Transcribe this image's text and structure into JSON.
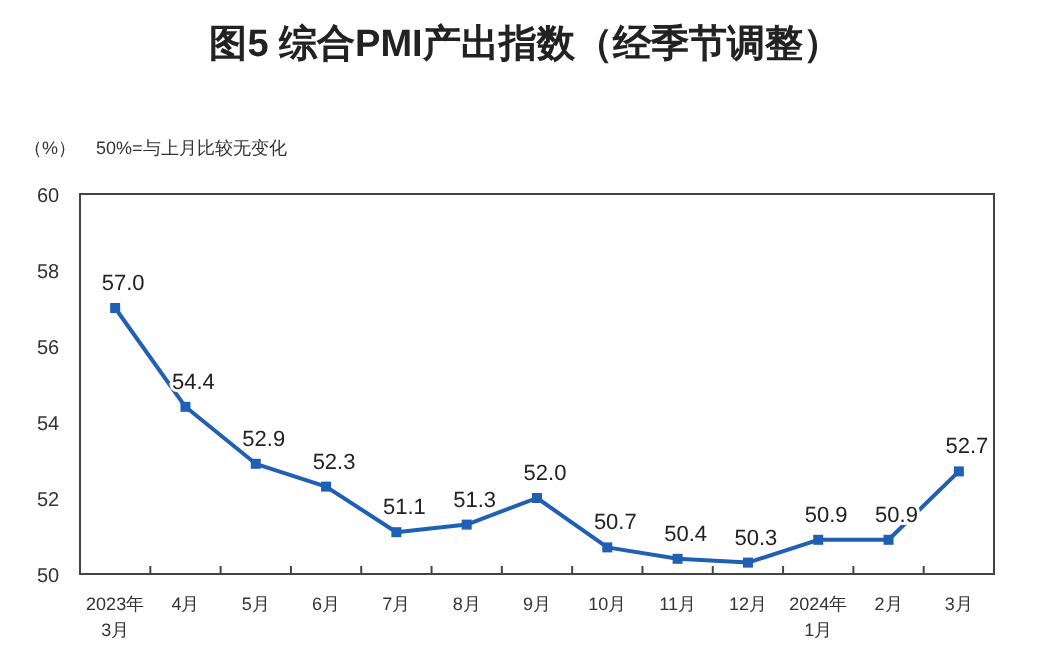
{
  "chart_data": {
    "type": "line",
    "title": "图5  综合PMI产出指数（经季节调整）",
    "ylabel": "（%）",
    "annotations": [
      "50%=与上月比较无变化"
    ],
    "categories": [
      "2023年\n3月",
      "4月",
      "5月",
      "6月",
      "7月",
      "8月",
      "9月",
      "10月",
      "11月",
      "12月",
      "2024年\n1月",
      "2月",
      "3月"
    ],
    "series": [
      {
        "color": "#1f5fb4",
        "values": [
          57.0,
          54.4,
          52.9,
          52.3,
          51.1,
          51.3,
          52.0,
          50.7,
          50.4,
          50.3,
          50.9,
          50.9,
          52.7
        ]
      }
    ],
    "ylim": [
      50,
      60
    ],
    "yticks": [
      50,
      52,
      54,
      56,
      58,
      60
    ],
    "value_labels": [
      "57.0",
      "54.4",
      "52.9",
      "52.3",
      "51.1",
      "51.3",
      "52.0",
      "50.7",
      "50.4",
      "50.3",
      "50.9",
      "50.9",
      "52.7"
    ],
    "marker": "square",
    "line_style": "solid"
  }
}
